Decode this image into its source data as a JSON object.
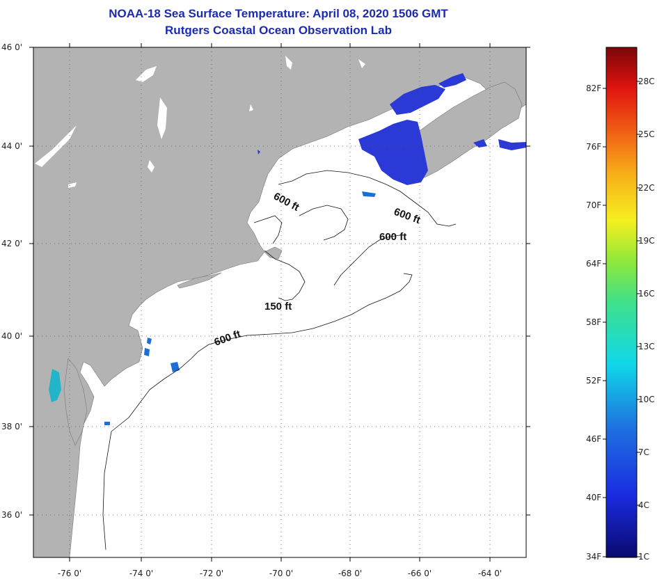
{
  "title": "NOAA-18 Sea Surface Temperature:  April 08, 2020 1506 GMT",
  "subtitle": "Rutgers Coastal Ocean Observation Lab",
  "map": {
    "lat_labels": [
      "46 0'",
      "44 0'",
      "42 0'",
      "40 0'",
      "38 0'",
      "36 0'"
    ],
    "lon_labels": [
      "-76 0'",
      "-74 0'",
      "-72 0'",
      "-70 0'",
      "-68 0'",
      "-66 0'",
      "-64 0'"
    ],
    "contour_labels": [
      {
        "text": "600 ft",
        "angle": 28
      },
      {
        "text": "600 ft",
        "angle": 20
      },
      {
        "text": "600 ft",
        "angle": 0
      },
      {
        "text": "150 ft",
        "angle": 0
      },
      {
        "text": "600 ft",
        "angle": -20
      }
    ],
    "colors": {
      "land": "#b3b3b3",
      "ocean": "#ffffff",
      "cold_water": "#2b3ad6",
      "cool_water": "#1d6fd8",
      "teal_water": "#22b4c8"
    }
  },
  "colorbar": {
    "fahrenheit": [
      "82F",
      "76F",
      "70F",
      "64F",
      "58F",
      "52F",
      "46F",
      "40F",
      "34F"
    ],
    "celsius": [
      "28C",
      "25C",
      "22C",
      "19C",
      "16C",
      "13C",
      "10C",
      "7C",
      "4C",
      "1C"
    ],
    "range_f": [
      34,
      87
    ]
  }
}
